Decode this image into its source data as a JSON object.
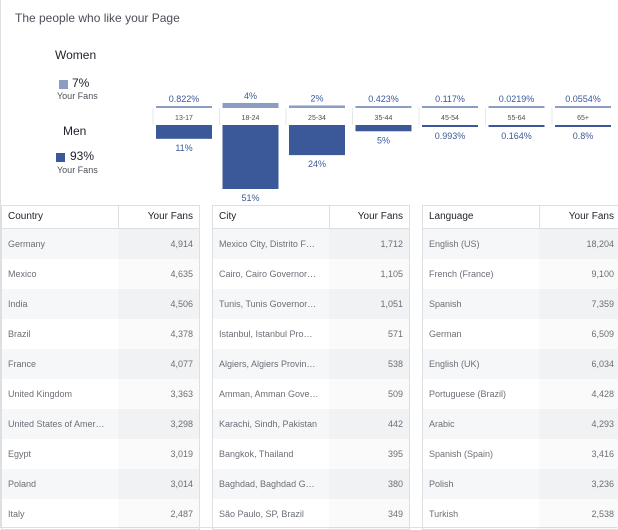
{
  "page": {
    "heading": "The people who like your Page"
  },
  "gender": {
    "women": {
      "label": "Women",
      "percent": "7%",
      "sublabel": "Your Fans",
      "color": "#8b9dc3"
    },
    "men": {
      "label": "Men",
      "percent": "93%",
      "sublabel": "Your Fans",
      "color": "#3b5998"
    }
  },
  "chart_data": {
    "type": "bar",
    "categories": [
      "13-17",
      "18-24",
      "25-34",
      "35-44",
      "45-54",
      "55-64",
      "65+"
    ],
    "series": [
      {
        "name": "Women",
        "values": [
          0.822,
          4,
          2,
          0.423,
          0.117,
          0.0219,
          0.0554
        ],
        "labels": [
          "0.822%",
          "4%",
          "2%",
          "0.423%",
          "0.117%",
          "0.0219%",
          "0.0554%"
        ],
        "color": "#8b9dc3"
      },
      {
        "name": "Men",
        "values": [
          11,
          51,
          24,
          5,
          0.993,
          0.164,
          0.8
        ],
        "labels": [
          "11%",
          "51%",
          "24%",
          "5%",
          "0.993%",
          "0.164%",
          "0.8%"
        ],
        "color": "#3b5998"
      }
    ]
  },
  "tables": [
    {
      "header": {
        "name": "Country",
        "value": "Your Fans"
      },
      "rows": [
        {
          "name": "Germany",
          "value": "4,914"
        },
        {
          "name": "Mexico",
          "value": "4,635"
        },
        {
          "name": "India",
          "value": "4,506"
        },
        {
          "name": "Brazil",
          "value": "4,378"
        },
        {
          "name": "France",
          "value": "4,077"
        },
        {
          "name": "United Kingdom",
          "value": "3,363"
        },
        {
          "name": "United States of Amer…",
          "value": "3,298"
        },
        {
          "name": "Egypt",
          "value": "3,019"
        },
        {
          "name": "Poland",
          "value": "3,014"
        },
        {
          "name": "Italy",
          "value": "2,487"
        }
      ]
    },
    {
      "header": {
        "name": "City",
        "value": "Your Fans"
      },
      "rows": [
        {
          "name": "Mexico City, Distrito F…",
          "value": "1,712"
        },
        {
          "name": "Cairo, Cairo Governor…",
          "value": "1,105"
        },
        {
          "name": "Tunis, Tunis Governor…",
          "value": "1,051"
        },
        {
          "name": "Istanbul, Istanbul Pro…",
          "value": "571"
        },
        {
          "name": "Algiers, Algiers Provin…",
          "value": "538"
        },
        {
          "name": "Amman, Amman Gove…",
          "value": "509"
        },
        {
          "name": "Karachi, Sindh, Pakistan",
          "value": "442"
        },
        {
          "name": "Bangkok, Thailand",
          "value": "395"
        },
        {
          "name": "Baghdad, Baghdad G…",
          "value": "380"
        },
        {
          "name": "São Paulo, SP, Brazil",
          "value": "349"
        }
      ]
    },
    {
      "header": {
        "name": "Language",
        "value": "Your Fans"
      },
      "rows": [
        {
          "name": "English (US)",
          "value": "18,204"
        },
        {
          "name": "French (France)",
          "value": "9,100"
        },
        {
          "name": "Spanish",
          "value": "7,359"
        },
        {
          "name": "German",
          "value": "6,509"
        },
        {
          "name": "English (UK)",
          "value": "6,034"
        },
        {
          "name": "Portuguese (Brazil)",
          "value": "4,428"
        },
        {
          "name": "Arabic",
          "value": "4,293"
        },
        {
          "name": "Spanish (Spain)",
          "value": "3,416"
        },
        {
          "name": "Polish",
          "value": "3,236"
        },
        {
          "name": "Turkish",
          "value": "2,538"
        }
      ]
    }
  ]
}
